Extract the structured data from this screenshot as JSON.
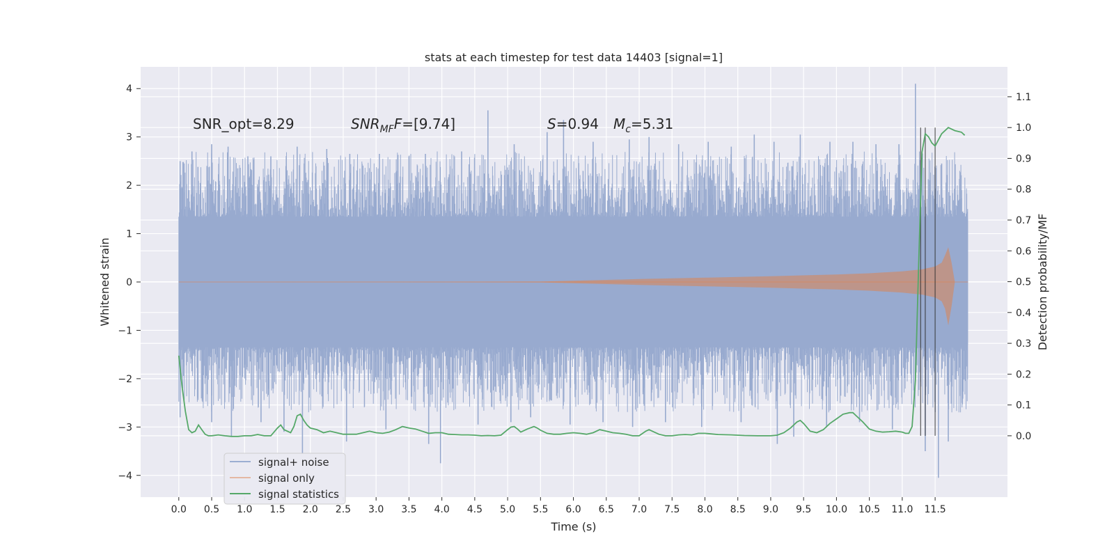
{
  "chart_data": {
    "type": "line",
    "title": "stats at each timestep for test data 14403 [signal=1]",
    "xlabel": "Time (s)",
    "ylabel": "Whitened strain",
    "ylabel_right": "Detection probability/MF",
    "xlim": [
      -0.58,
      12.6
    ],
    "ylim": [
      -4.45,
      4.45
    ],
    "ylim_right": [
      -0.199,
      1.197
    ],
    "x_ticks": [
      0.0,
      0.5,
      1.0,
      1.5,
      2.0,
      2.5,
      3.0,
      3.5,
      4.0,
      4.5,
      5.0,
      5.5,
      6.0,
      6.5,
      7.0,
      7.5,
      8.0,
      8.5,
      9.0,
      9.5,
      10.0,
      10.5,
      11.0,
      11.5
    ],
    "x_tick_labels": [
      "0.0",
      "0.5",
      "1.0",
      "1.5",
      "2.0",
      "2.5",
      "3.0",
      "3.5",
      "4.0",
      "4.5",
      "5.0",
      "5.5",
      "6.0",
      "6.5",
      "7.0",
      "7.5",
      "8.0",
      "8.5",
      "9.0",
      "9.5",
      "10.0",
      "10.5",
      "11.0",
      "11.5"
    ],
    "y_ticks": [
      -4,
      -3,
      -2,
      -1,
      0,
      1,
      2,
      3,
      4
    ],
    "y_tick_labels": [
      "−4",
      "−3",
      "−2",
      "−1",
      "0",
      "1",
      "2",
      "3",
      "4"
    ],
    "y_ticks_right": [
      0.0,
      0.1,
      0.2,
      0.3,
      0.4,
      0.5,
      0.6,
      0.7,
      0.8,
      0.9,
      1.0,
      1.1
    ],
    "y_tick_labels_right": [
      "0.0",
      "0.1",
      "0.2",
      "0.3",
      "0.4",
      "0.5",
      "0.6",
      "0.7",
      "0.8",
      "0.9",
      "1.0",
      "1.1"
    ],
    "grid": true,
    "legend_position": "lower-left",
    "annotations": {
      "snr_opt": "SNR_opt=8.29",
      "snr_mf_name": "SNR",
      "snr_mf_sub": "MF",
      "snr_mf_value": "=[9.74]",
      "s_name": "S",
      "s_value": "=0.94",
      "mc_name": "M",
      "mc_sub": "c",
      "mc_value": "=5.31"
    },
    "series": [
      {
        "name": "signal+ noise",
        "color": "#4c72b0",
        "axis": "left",
        "x_range": [
          0.0,
          12.0
        ],
        "band_lower": -1.3,
        "band_upper": 1.3,
        "peaks_up": [
          [
            0.02,
            2.5
          ],
          [
            0.2,
            2.7
          ],
          [
            0.5,
            2.85
          ],
          [
            0.75,
            2.8
          ],
          [
            1.05,
            2.6
          ],
          [
            1.4,
            2.6
          ],
          [
            1.8,
            2.8
          ],
          [
            2.25,
            2.75
          ],
          [
            2.6,
            2.65
          ],
          [
            3.05,
            2.65
          ],
          [
            3.5,
            2.6
          ],
          [
            3.75,
            2.65
          ],
          [
            4.3,
            2.7
          ],
          [
            4.7,
            3.55
          ],
          [
            5.1,
            2.85
          ],
          [
            5.6,
            3.1
          ],
          [
            5.85,
            3.35
          ],
          [
            6.3,
            2.9
          ],
          [
            6.85,
            2.95
          ],
          [
            7.15,
            3.0
          ],
          [
            7.6,
            2.85
          ],
          [
            8.05,
            2.9
          ],
          [
            8.4,
            2.8
          ],
          [
            8.75,
            3.05
          ],
          [
            9.05,
            2.9
          ],
          [
            9.45,
            3.05
          ],
          [
            9.9,
            2.9
          ],
          [
            10.25,
            2.9
          ],
          [
            10.6,
            2.85
          ],
          [
            10.95,
            2.85
          ],
          [
            11.2,
            4.1
          ],
          [
            11.6,
            2.45
          ],
          [
            11.9,
            1.9
          ]
        ],
        "peaks_down": [
          [
            0.02,
            -2.8
          ],
          [
            0.5,
            -2.9
          ],
          [
            0.8,
            -3.2
          ],
          [
            1.25,
            -2.9
          ],
          [
            1.6,
            -3.1
          ],
          [
            1.88,
            -3.55
          ],
          [
            2.55,
            -3.3
          ],
          [
            3.15,
            -3.05
          ],
          [
            3.8,
            -3.35
          ],
          [
            3.98,
            -3.75
          ],
          [
            4.55,
            -2.95
          ],
          [
            5.05,
            -2.9
          ],
          [
            5.35,
            -2.8
          ],
          [
            5.95,
            -2.95
          ],
          [
            6.45,
            -2.9
          ],
          [
            6.9,
            -3.0
          ],
          [
            7.4,
            -2.9
          ],
          [
            7.95,
            -3.0
          ],
          [
            8.55,
            -2.9
          ],
          [
            9.1,
            -3.35
          ],
          [
            9.35,
            -3.2
          ],
          [
            9.85,
            -3.0
          ],
          [
            10.35,
            -2.9
          ],
          [
            10.85,
            -3.05
          ],
          [
            11.35,
            -3.5
          ],
          [
            11.55,
            -4.05
          ],
          [
            11.7,
            -3.3
          ],
          [
            11.95,
            -1.8
          ]
        ]
      },
      {
        "name": "signal only",
        "color": "#dd8452",
        "axis": "left",
        "envelope_x": [
          0.0,
          3.0,
          5.5,
          6.0,
          7.0,
          8.0,
          9.0,
          10.0,
          10.5,
          11.0,
          11.3,
          11.5,
          11.6,
          11.65,
          11.7,
          11.75,
          11.8
        ],
        "envelope_y": [
          0.0,
          0.002,
          0.008,
          0.025,
          0.06,
          0.09,
          0.12,
          0.155,
          0.18,
          0.22,
          0.26,
          0.32,
          0.4,
          0.55,
          0.72,
          0.4,
          0.0
        ],
        "envelope_y_lower": [
          0.0,
          0.002,
          0.008,
          0.025,
          0.06,
          0.09,
          0.12,
          0.155,
          0.18,
          0.22,
          0.26,
          0.32,
          0.4,
          0.55,
          0.9,
          0.5,
          0.0
        ]
      },
      {
        "name": "signal statistics",
        "color": "#55a868",
        "axis": "right",
        "x": [
          0.0,
          0.05,
          0.1,
          0.15,
          0.2,
          0.25,
          0.3,
          0.35,
          0.4,
          0.45,
          0.5,
          0.6,
          0.7,
          0.8,
          0.9,
          1.0,
          1.1,
          1.2,
          1.3,
          1.4,
          1.5,
          1.55,
          1.6,
          1.7,
          1.75,
          1.8,
          1.85,
          1.9,
          1.95,
          2.0,
          2.1,
          2.2,
          2.3,
          2.4,
          2.5,
          2.6,
          2.7,
          2.8,
          2.9,
          3.0,
          3.1,
          3.2,
          3.3,
          3.4,
          3.5,
          3.6,
          3.7,
          3.8,
          3.9,
          4.0,
          4.1,
          4.2,
          4.3,
          4.4,
          4.5,
          4.6,
          4.7,
          4.8,
          4.9,
          5.0,
          5.05,
          5.1,
          5.15,
          5.2,
          5.3,
          5.4,
          5.45,
          5.5,
          5.6,
          5.7,
          5.8,
          5.9,
          6.0,
          6.1,
          6.2,
          6.3,
          6.4,
          6.5,
          6.6,
          6.7,
          6.8,
          6.9,
          7.0,
          7.1,
          7.15,
          7.2,
          7.3,
          7.4,
          7.5,
          7.6,
          7.7,
          7.8,
          7.9,
          8.0,
          8.2,
          8.4,
          8.6,
          8.8,
          9.0,
          9.1,
          9.2,
          9.3,
          9.4,
          9.45,
          9.5,
          9.6,
          9.7,
          9.8,
          9.9,
          10.0,
          10.1,
          10.2,
          10.25,
          10.3,
          10.4,
          10.5,
          10.6,
          10.7,
          10.8,
          10.9,
          11.0,
          11.05,
          11.1,
          11.15,
          11.2,
          11.25,
          11.3,
          11.35,
          11.4,
          11.45,
          11.5,
          11.6,
          11.7,
          11.8,
          11.9,
          11.95
        ],
        "y": [
          0.26,
          0.16,
          0.08,
          0.02,
          0.01,
          0.015,
          0.035,
          0.02,
          0.005,
          0.0,
          0.0,
          0.003,
          0.0,
          -0.002,
          -0.002,
          0.0,
          0.0,
          0.004,
          0.0,
          0.0,
          0.025,
          0.035,
          0.02,
          0.01,
          0.03,
          0.065,
          0.07,
          0.05,
          0.035,
          0.025,
          0.02,
          0.01,
          0.015,
          0.01,
          0.005,
          0.005,
          0.005,
          0.01,
          0.015,
          0.01,
          0.008,
          0.012,
          0.02,
          0.03,
          0.025,
          0.022,
          0.015,
          0.008,
          0.01,
          0.01,
          0.005,
          0.004,
          0.003,
          0.003,
          0.002,
          0.0,
          0.001,
          0.0,
          0.002,
          0.02,
          0.028,
          0.03,
          0.022,
          0.012,
          0.022,
          0.03,
          0.025,
          0.018,
          0.008,
          0.005,
          0.005,
          0.008,
          0.01,
          0.008,
          0.005,
          0.01,
          0.02,
          0.015,
          0.01,
          0.008,
          0.005,
          0.0,
          0.0,
          0.015,
          0.02,
          0.015,
          0.005,
          0.0,
          0.0,
          0.003,
          0.004,
          0.003,
          0.008,
          0.008,
          0.004,
          0.003,
          0.001,
          0.0,
          0.0,
          0.002,
          0.01,
          0.025,
          0.045,
          0.05,
          0.04,
          0.015,
          0.01,
          0.02,
          0.04,
          0.055,
          0.07,
          0.075,
          0.075,
          0.065,
          0.045,
          0.022,
          0.015,
          0.012,
          0.013,
          0.015,
          0.012,
          0.008,
          0.008,
          0.03,
          0.18,
          0.56,
          0.92,
          0.98,
          0.97,
          0.95,
          0.94,
          0.98,
          1.0,
          0.99,
          0.985,
          0.975
        ],
        "markers_x": [
          11.28,
          11.35,
          11.5
        ]
      }
    ]
  }
}
